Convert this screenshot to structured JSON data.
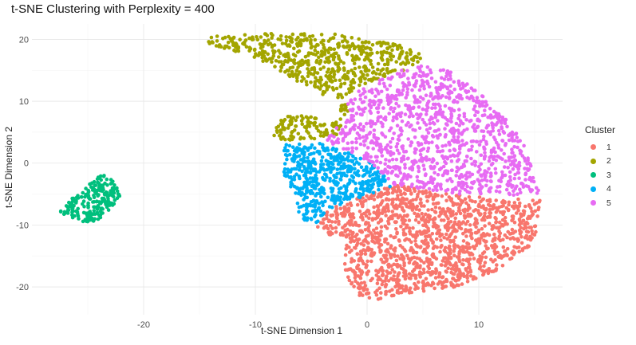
{
  "chart_data": {
    "type": "scatter",
    "title": "t-SNE Clustering with Perplexity = 400",
    "xlabel": "t-SNE Dimension 1",
    "ylabel": "t-SNE Dimension 2",
    "xlim": [
      -30,
      17.5
    ],
    "ylim": [
      -24.5,
      22.5
    ],
    "x_ticks": [
      "-20",
      "-10",
      "0",
      "10"
    ],
    "y_ticks": [
      "20",
      "10",
      "0",
      "-10",
      "-20"
    ],
    "x_tick_values": [
      -20,
      -10,
      0,
      10
    ],
    "y_tick_values": [
      20,
      10,
      0,
      -10,
      -20
    ],
    "grid": true,
    "legend": {
      "title": "Cluster",
      "placement": "right",
      "entries": [
        "1",
        "2",
        "3",
        "4",
        "5"
      ]
    },
    "colors": {
      "1": "#F8766D",
      "2": "#A3A500",
      "3": "#00BF7D",
      "4": "#00B0F6",
      "5": "#E76BF3"
    },
    "series": [
      {
        "name": "1",
        "regions": [
          {
            "polygon": [
              [
                -3.5,
                -7.5
              ],
              [
                2.5,
                -3.5
              ],
              [
                6,
                -4.5
              ],
              [
                10,
                -5.5
              ],
              [
                15.5,
                -6
              ],
              [
                15,
                -13
              ],
              [
                12,
                -17
              ],
              [
                8,
                -20
              ],
              [
                4,
                -21
              ],
              [
                1,
                -22
              ],
              [
                -1,
                -21.5
              ],
              [
                -2,
                -18
              ],
              [
                -2,
                -12
              ],
              [
                -3.5,
                -11.5
              ],
              [
                -4.5,
                -10.5
              ]
            ],
            "count": 1400
          }
        ]
      },
      {
        "name": "2",
        "regions": [
          {
            "polygon": [
              [
                -14.5,
                20.5
              ],
              [
                -9,
                21
              ],
              [
                -2,
                20.8
              ],
              [
                3,
                19
              ],
              [
                5,
                17.5
              ],
              [
                4.2,
                15.5
              ],
              [
                0,
                13
              ],
              [
                -2,
                10.5
              ],
              [
                -1.5,
                8
              ],
              [
                -3.5,
                7
              ],
              [
                -5.5,
                8
              ],
              [
                -7.5,
                7.5
              ],
              [
                -8.5,
                5
              ],
              [
                -8,
                3.5
              ],
              [
                -4,
                4
              ],
              [
                -2,
                5
              ],
              [
                -2.5,
                9.5
              ],
              [
                -7,
                14
              ],
              [
                -9,
                16
              ],
              [
                -11,
                17.5
              ],
              [
                -14,
                19
              ]
            ],
            "count": 700
          }
        ]
      },
      {
        "name": "3",
        "regions": [
          {
            "polygon": [
              [
                -27,
                -6.5
              ],
              [
                -25.5,
                -4.5
              ],
              [
                -24,
                -2
              ],
              [
                -23.2,
                -2
              ],
              [
                -22.5,
                -3.5
              ],
              [
                -22,
                -5
              ],
              [
                -23,
                -7.5
              ],
              [
                -24,
                -9.5
              ],
              [
                -25.5,
                -9.5
              ],
              [
                -27.5,
                -8
              ]
            ],
            "count": 220
          }
        ]
      },
      {
        "name": "4",
        "regions": [
          {
            "polygon": [
              [
                -7.5,
                3
              ],
              [
                -4,
                3.5
              ],
              [
                -2,
                2
              ],
              [
                0,
                0.5
              ],
              [
                2.5,
                -3.5
              ],
              [
                -3.5,
                -7.5
              ],
              [
                -4.5,
                -10
              ],
              [
                -6,
                -9
              ],
              [
                -6.5,
                -5
              ],
              [
                -7.5,
                -2
              ]
            ],
            "count": 520
          }
        ]
      },
      {
        "name": "5",
        "regions": [
          {
            "polygon": [
              [
                -1.5,
                8
              ],
              [
                -2,
                10.5
              ],
              [
                0,
                12.5
              ],
              [
                3,
                15
              ],
              [
                5.5,
                16
              ],
              [
                8,
                14.5
              ],
              [
                10,
                11.5
              ],
              [
                12,
                8
              ],
              [
                14,
                3.5
              ],
              [
                15.5,
                -5
              ],
              [
                10,
                -5.5
              ],
              [
                6,
                -4.5
              ],
              [
                2.5,
                -3.5
              ],
              [
                0,
                0.5
              ],
              [
                -2,
                2
              ],
              [
                -4,
                3.5
              ]
            ],
            "count": 1100
          }
        ]
      }
    ]
  }
}
